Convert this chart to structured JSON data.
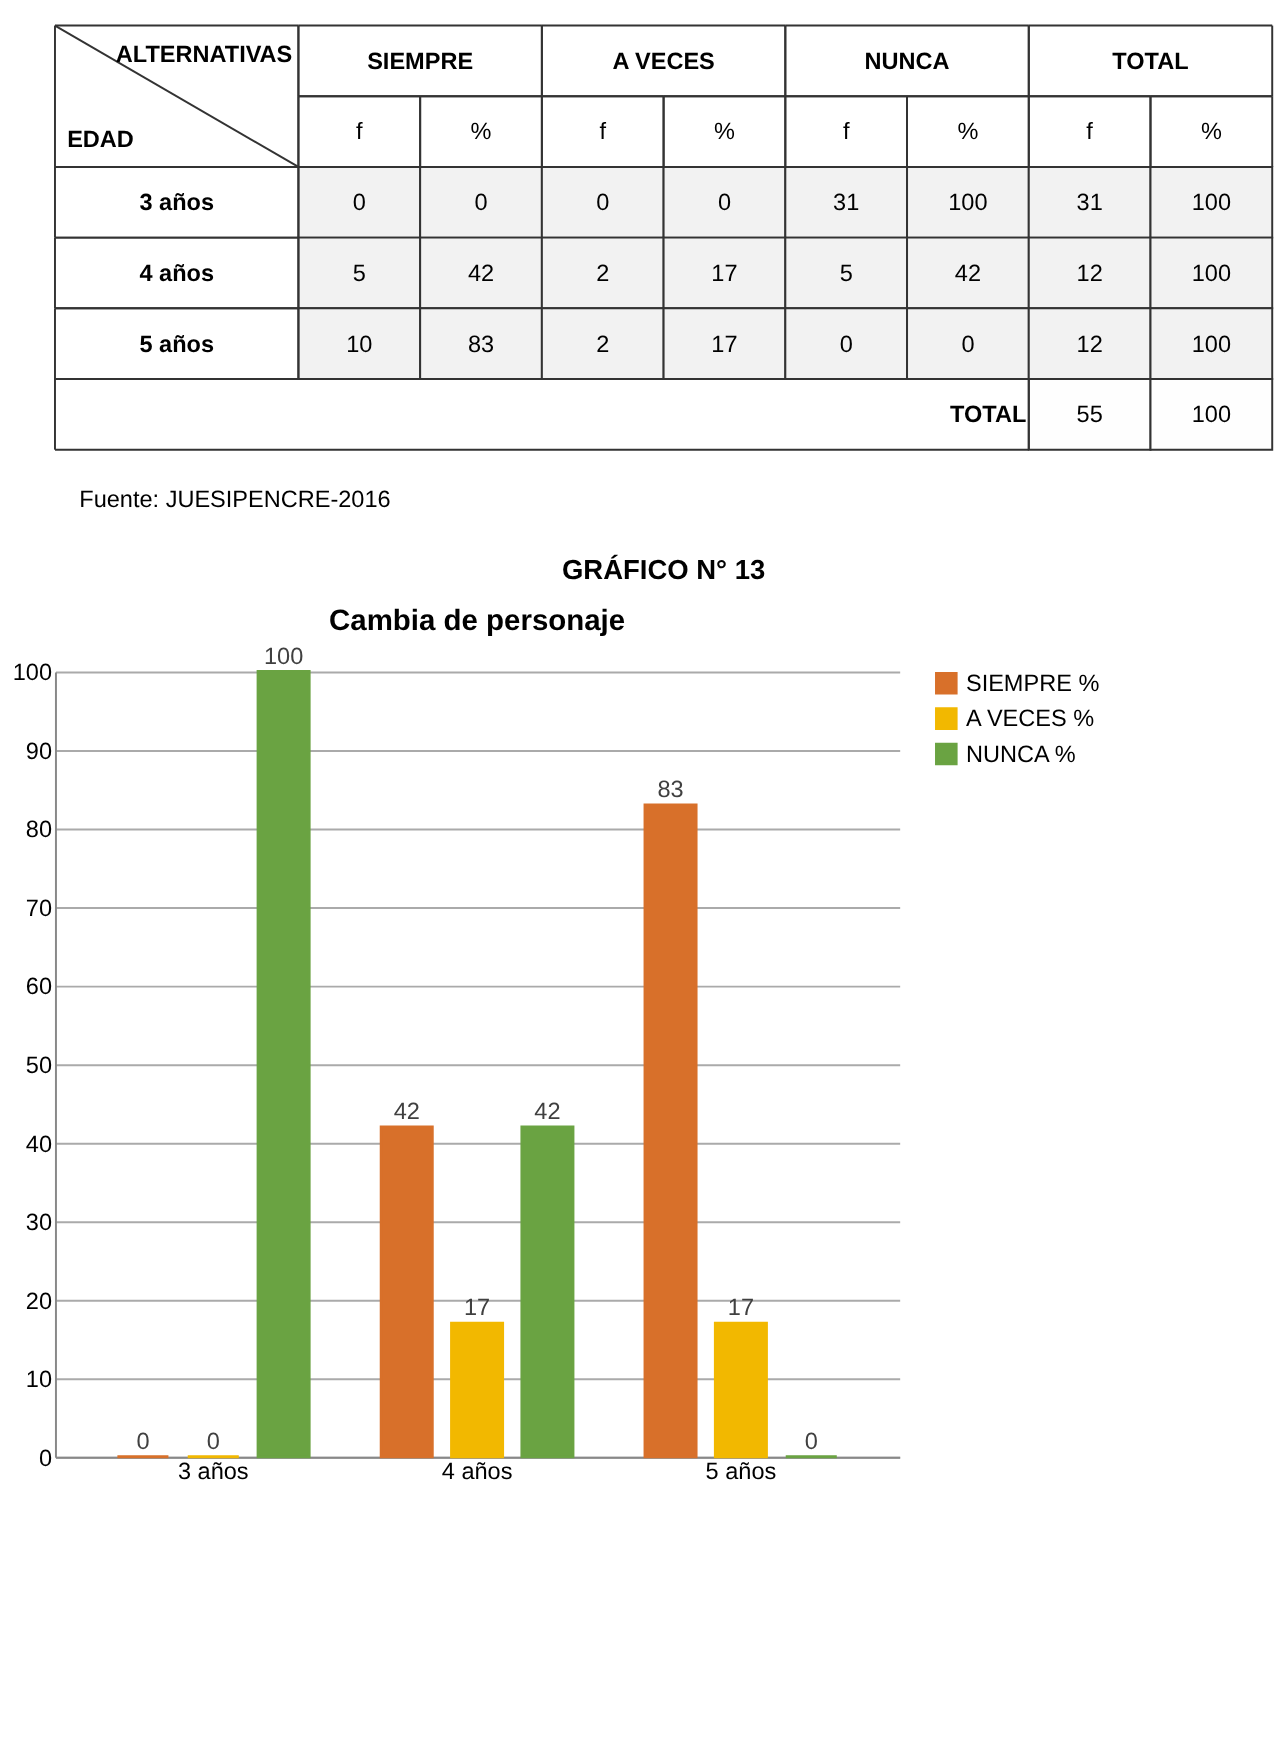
{
  "chart_data": [
    {
      "type": "heatmap",
      "xlabel": "ALTERNATIVAS",
      "ylabel": "EDAD",
      "categories": [
        "f",
        "%",
        "f",
        "%",
        "f",
        "%",
        "f",
        "%"
      ],
      "y_categories": [
        "3 años",
        "4 años",
        "5 años",
        null
      ],
      "cells": [
        [
          0,
          0,
          0,
          0,
          31,
          100,
          31,
          100
        ],
        [
          5,
          42,
          2,
          17,
          5,
          42,
          12,
          100
        ],
        [
          10,
          83,
          2,
          17,
          0,
          0,
          12,
          100
        ],
        [
          null,
          null,
          null,
          null,
          null,
          null,
          55,
          100
        ]
      ],
      "data_labels": true,
      "annotations": [
        "SIEMPRE",
        "A VECES",
        "NUNCA",
        "TOTAL",
        "TOTAL",
        "Fuente: JUESIPENCRE-2016"
      ]
    },
    {
      "type": "bar",
      "title": "Cambia de personaje",
      "annotations": [
        "GRÁFICO N° 13"
      ],
      "categories": [
        "3 años",
        "4 años",
        "5 años"
      ],
      "series": [
        {
          "name": "SIEMPRE %",
          "color": "#d8702a",
          "values": [
            0,
            42,
            83
          ]
        },
        {
          "name": "A VECES %",
          "color": "#f2b800",
          "values": [
            0,
            17,
            17
          ]
        },
        {
          "name": "NUNCA  %",
          "color": "#6aa342",
          "values": [
            100,
            42,
            0
          ]
        }
      ],
      "ylim": [
        0,
        100
      ],
      "yticks": [
        0,
        10,
        20,
        30,
        40,
        50,
        60,
        70,
        80,
        90,
        100
      ],
      "grid": "y",
      "legend": "right",
      "data_labels": true
    }
  ]
}
